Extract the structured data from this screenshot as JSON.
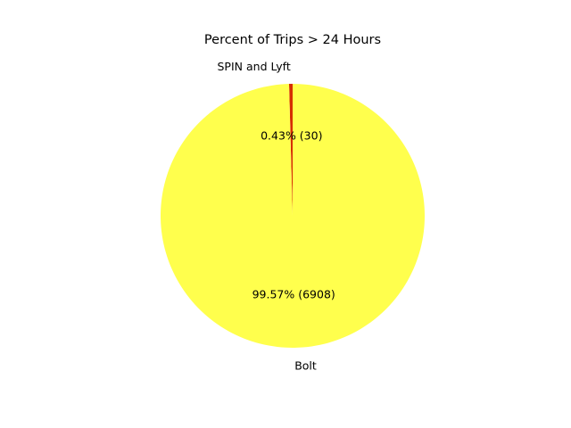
{
  "chart_data": {
    "type": "pie",
    "title": "Percent of Trips > 24 Hours",
    "slices": [
      {
        "label": "SPIN and Lyft",
        "value": 30,
        "percent_label": "0.43%  (30)",
        "color": "#d62e00"
      },
      {
        "label": "Bolt",
        "value": 6908,
        "percent_label": "99.57%  (6908)",
        "color": "#ffff4d"
      }
    ],
    "start_angle_deg": 90,
    "direction": "counterclockwise",
    "legend": "none"
  }
}
